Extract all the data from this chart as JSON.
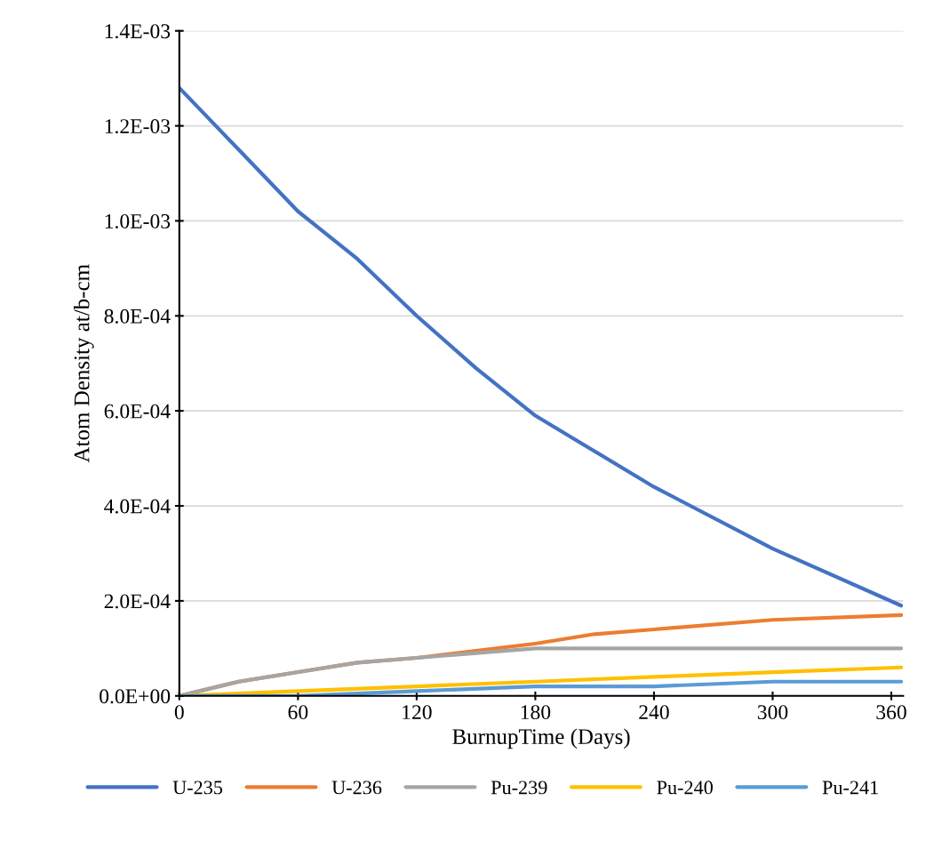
{
  "chart_data": {
    "type": "line",
    "xlabel": "BurnupTime (Days)",
    "ylabel": "Atom Density at/b-cm",
    "xlim": [
      0,
      366
    ],
    "xticks": [
      0,
      60,
      120,
      180,
      240,
      300,
      360
    ],
    "ylim": [
      0,
      0.0014
    ],
    "yticks": [
      {
        "value": 0,
        "label": "0.0E+00"
      },
      {
        "value": 0.0002,
        "label": "2.0E-04"
      },
      {
        "value": 0.0004,
        "label": "4.0E-04"
      },
      {
        "value": 0.0006,
        "label": "6.0E-04"
      },
      {
        "value": 0.0008,
        "label": "8.0E-04"
      },
      {
        "value": 0.001,
        "label": "1.0E-03"
      },
      {
        "value": 0.0012,
        "label": "1.2E-03"
      },
      {
        "value": 0.0014,
        "label": "1.4E-03"
      }
    ],
    "grid": "y",
    "legend": "bottom",
    "marker": "none",
    "line_style": "solid",
    "series": [
      {
        "name": "U-235",
        "color": "#4472c4",
        "x": [
          0,
          30,
          60,
          90,
          120,
          150,
          180,
          208,
          240,
          300,
          365
        ],
        "values": [
          0.00128,
          0.00115,
          0.00102,
          0.00092,
          0.0008,
          0.00069,
          0.00059,
          0.00052,
          0.00044,
          0.00031,
          0.00019
        ]
      },
      {
        "name": "U-236",
        "color": "#ed7d31",
        "x": [
          0,
          30,
          60,
          90,
          120,
          180,
          210,
          240,
          300,
          365
        ],
        "values": [
          0,
          3e-05,
          5e-05,
          7e-05,
          8e-05,
          0.00011,
          0.00013,
          0.00014,
          0.00016,
          0.00017
        ]
      },
      {
        "name": "Pu-239",
        "color": "#a5a5a5",
        "x": [
          0,
          30,
          60,
          90,
          120,
          150,
          180,
          240,
          300,
          365
        ],
        "values": [
          0,
          3e-05,
          5e-05,
          7e-05,
          8e-05,
          9e-05,
          0.0001,
          0.0001,
          0.0001,
          0.0001
        ]
      },
      {
        "name": "Pu-240",
        "color": "#ffc000",
        "x": [
          0,
          60,
          120,
          180,
          240,
          300,
          365
        ],
        "values": [
          0,
          1e-05,
          2e-05,
          3e-05,
          4e-05,
          5e-05,
          6e-05
        ]
      },
      {
        "name": "Pu-241",
        "color": "#5b9bd5",
        "x": [
          0,
          60,
          120,
          180,
          240,
          300,
          365
        ],
        "values": [
          0,
          0.0,
          1e-05,
          2e-05,
          2e-05,
          3e-05,
          3e-05
        ]
      }
    ]
  }
}
